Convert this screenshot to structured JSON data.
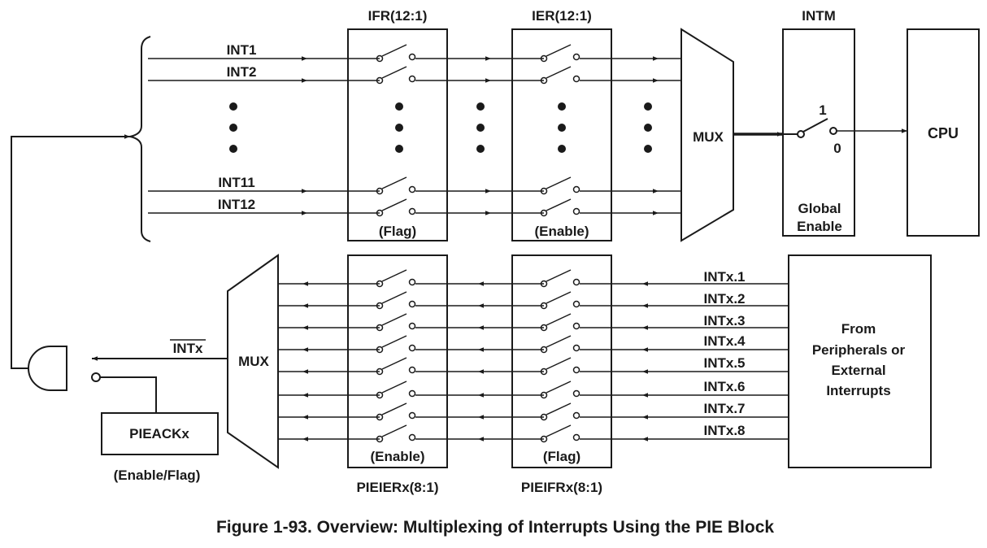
{
  "figure": {
    "caption": "Figure 1-93. Overview: Multiplexing of Interrupts Using the PIE Block"
  },
  "top": {
    "ifr_title": "IFR(12:1)",
    "ier_title": "IER(12:1)",
    "intm_title": "INTM",
    "ifr_footer": "(Flag)",
    "ier_footer": "(Enable)",
    "mux_label": "MUX",
    "cpu_label": "CPU",
    "intm_on": "1",
    "intm_off": "0",
    "global_enable_line1": "Global",
    "global_enable_line2": "Enable",
    "int_labels": [
      "INT1",
      "INT2",
      "INT11",
      "INT12"
    ]
  },
  "bottom": {
    "pieier_title": "PIEIERx(8:1)",
    "pieifr_title": "PIEIFRx(8:1)",
    "pieier_footer": "(Enable)",
    "pieifr_footer": "(Flag)",
    "mux_label": "MUX",
    "intx_bar_label": "INTx",
    "pieack_label": "PIEACKx",
    "pieack_caption": "(Enable/Flag)",
    "source_lines": [
      "From",
      "Peripherals or",
      "External",
      "Interrupts"
    ],
    "intx_labels": [
      "INTx.1",
      "INTx.2",
      "INTx.3",
      "INTx.4",
      "INTx.5",
      "INTx.6",
      "INTx.7",
      "INTx.8"
    ]
  },
  "colors": {
    "line": "#1a1a1a",
    "background": "#ffffff"
  }
}
